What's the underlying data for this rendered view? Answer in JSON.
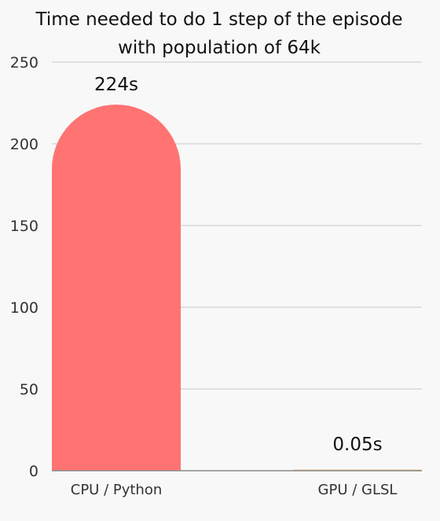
{
  "chart_data": {
    "type": "bar",
    "title_lines": [
      "Time needed to do 1 step of the episode",
      "with population of 64k"
    ],
    "categories": [
      "CPU /  Python",
      "GPU / GLSL"
    ],
    "values": [
      224,
      0.05
    ],
    "data_labels": [
      "224s",
      "0.05s"
    ],
    "ylim": [
      0,
      250
    ],
    "yticks": [
      0,
      50,
      100,
      150,
      200,
      250
    ],
    "grid": true,
    "colors": [
      "#ff7373",
      "#f5c08a"
    ]
  }
}
